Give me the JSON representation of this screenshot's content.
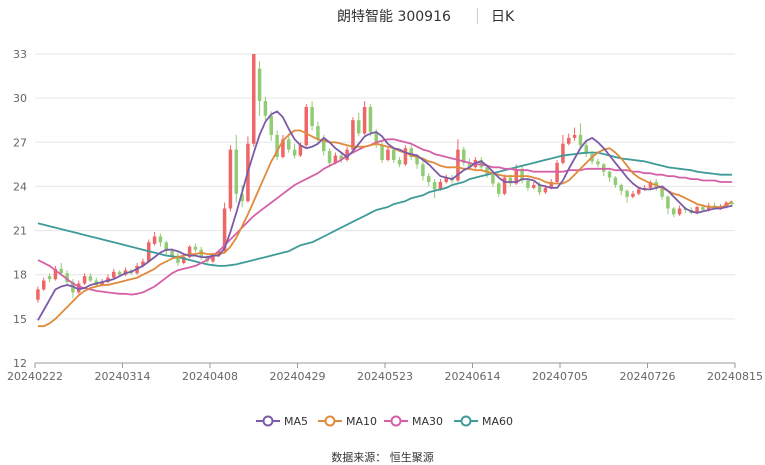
{
  "header": {
    "title": "朗特智能 300916",
    "period": "日K"
  },
  "source_text": "数据来源： 恒生聚源",
  "colors": {
    "up": "#ee6666",
    "down": "#91cc75",
    "MA5": "#7b5ba8",
    "MA10": "#e08a3c",
    "MA30": "#d660a8",
    "MA60": "#3f9a9a",
    "grid": "#e6e6e6",
    "axis_text": "#666666"
  },
  "chart_data": {
    "type": "candlestick",
    "title": "朗特智能 300916",
    "period": "日K",
    "ylim": [
      12,
      33
    ],
    "yticks": [
      12,
      15,
      18,
      21,
      24,
      27,
      30,
      33
    ],
    "xtick_labels": [
      "20240222",
      "20240314",
      "20240408",
      "20240429",
      "20240523",
      "20240614",
      "20240705",
      "20240726",
      "20240815"
    ],
    "legend": [
      "MA5",
      "MA10",
      "MA30",
      "MA60"
    ],
    "legend_position": "bottom",
    "grid": true,
    "num_days": 120,
    "candles": [
      [
        16.3,
        17.0,
        16.1,
        17.2
      ],
      [
        17.0,
        17.6,
        16.9,
        17.8
      ],
      [
        17.9,
        17.7,
        17.5,
        18.1
      ],
      [
        17.7,
        18.4,
        17.6,
        18.6
      ],
      [
        18.4,
        18.1,
        17.9,
        18.8
      ],
      [
        18.1,
        17.5,
        17.3,
        18.3
      ],
      [
        17.5,
        16.8,
        16.4,
        17.7
      ],
      [
        16.8,
        17.4,
        16.7,
        17.6
      ],
      [
        17.4,
        17.9,
        17.3,
        18.1
      ],
      [
        17.9,
        17.6,
        17.5,
        18.1
      ],
      [
        17.6,
        17.3,
        17.2,
        17.8
      ],
      [
        17.3,
        17.5,
        17.2,
        17.7
      ],
      [
        17.5,
        17.8,
        17.4,
        18.0
      ],
      [
        17.8,
        18.2,
        17.7,
        18.4
      ],
      [
        18.2,
        18.0,
        17.9,
        18.3
      ],
      [
        18.0,
        18.3,
        17.9,
        18.5
      ],
      [
        18.3,
        18.1,
        18.0,
        18.4
      ],
      [
        18.1,
        18.6,
        18.0,
        18.8
      ],
      [
        18.6,
        18.9,
        18.5,
        19.1
      ],
      [
        18.9,
        20.2,
        18.8,
        20.4
      ],
      [
        20.1,
        20.6,
        20.0,
        20.9
      ],
      [
        20.6,
        20.2,
        19.9,
        20.8
      ],
      [
        20.2,
        19.6,
        19.3,
        20.3
      ],
      [
        19.6,
        19.3,
        19.1,
        19.8
      ],
      [
        19.3,
        18.8,
        18.6,
        19.5
      ],
      [
        18.8,
        19.2,
        18.7,
        19.3
      ],
      [
        19.2,
        19.9,
        19.1,
        20.0
      ],
      [
        19.9,
        19.7,
        19.5,
        20.1
      ],
      [
        19.7,
        19.2,
        19.0,
        19.9
      ],
      [
        19.2,
        18.9,
        18.7,
        19.3
      ],
      [
        18.9,
        19.3,
        18.8,
        19.5
      ],
      [
        19.3,
        19.6,
        19.2,
        19.7
      ],
      [
        19.6,
        22.5,
        19.5,
        22.9
      ],
      [
        22.5,
        26.5,
        22.3,
        26.8
      ],
      [
        26.5,
        23.5,
        22.9,
        27.5
      ],
      [
        23.5,
        23.0,
        22.6,
        24.1
      ],
      [
        23.0,
        26.9,
        22.9,
        27.4
      ],
      [
        26.9,
        33.0,
        26.7,
        33.0
      ],
      [
        32.0,
        29.8,
        28.8,
        32.5
      ],
      [
        29.8,
        28.8,
        28.5,
        30.1
      ],
      [
        28.8,
        27.5,
        27.1,
        29.1
      ],
      [
        27.5,
        26.0,
        25.8,
        27.8
      ],
      [
        26.0,
        27.2,
        25.9,
        27.5
      ],
      [
        27.2,
        26.5,
        26.3,
        27.6
      ],
      [
        26.5,
        26.1,
        25.9,
        26.9
      ],
      [
        26.1,
        26.8,
        26.0,
        27.0
      ],
      [
        26.8,
        29.4,
        26.7,
        29.6
      ],
      [
        29.4,
        28.1,
        27.8,
        29.8
      ],
      [
        28.1,
        27.2,
        26.9,
        28.4
      ],
      [
        27.2,
        26.4,
        26.1,
        27.5
      ],
      [
        26.4,
        25.6,
        25.3,
        26.6
      ],
      [
        25.6,
        26.1,
        25.5,
        26.3
      ],
      [
        26.1,
        25.8,
        25.6,
        26.3
      ],
      [
        25.8,
        26.5,
        25.7,
        26.7
      ],
      [
        26.5,
        28.5,
        26.4,
        28.7
      ],
      [
        28.5,
        27.6,
        27.4,
        29.0
      ],
      [
        27.6,
        29.4,
        27.5,
        29.8
      ],
      [
        29.4,
        27.7,
        27.4,
        29.6
      ],
      [
        27.7,
        26.8,
        26.6,
        27.9
      ],
      [
        26.8,
        25.8,
        25.6,
        27.0
      ],
      [
        25.8,
        26.5,
        25.7,
        26.7
      ],
      [
        26.5,
        25.8,
        25.6,
        26.7
      ],
      [
        25.8,
        25.5,
        25.3,
        26.0
      ],
      [
        25.5,
        26.6,
        25.4,
        26.8
      ],
      [
        26.6,
        26.0,
        25.8,
        26.8
      ],
      [
        26.0,
        25.5,
        25.2,
        26.2
      ],
      [
        25.5,
        24.7,
        24.4,
        25.7
      ],
      [
        24.7,
        24.3,
        24.0,
        24.9
      ],
      [
        24.3,
        23.8,
        23.2,
        24.5
      ],
      [
        23.8,
        24.3,
        23.7,
        24.5
      ],
      [
        24.3,
        24.6,
        24.2,
        24.8
      ],
      [
        24.6,
        24.4,
        24.2,
        24.8
      ],
      [
        24.4,
        26.5,
        24.3,
        27.2
      ],
      [
        26.5,
        25.6,
        25.4,
        26.7
      ],
      [
        25.6,
        25.3,
        25.1,
        25.9
      ],
      [
        25.3,
        25.8,
        25.2,
        26.0
      ],
      [
        25.8,
        25.3,
        25.1,
        26.0
      ],
      [
        25.3,
        24.8,
        24.6,
        25.5
      ],
      [
        24.8,
        24.2,
        24.0,
        25.0
      ],
      [
        24.2,
        23.5,
        23.3,
        24.3
      ],
      [
        23.5,
        24.6,
        23.4,
        24.8
      ],
      [
        24.6,
        24.2,
        24.0,
        24.8
      ],
      [
        24.2,
        25.2,
        24.1,
        25.5
      ],
      [
        25.2,
        24.4,
        24.2,
        25.4
      ],
      [
        24.4,
        23.9,
        23.7,
        24.6
      ],
      [
        23.9,
        24.1,
        23.8,
        24.3
      ],
      [
        24.1,
        23.6,
        23.4,
        24.3
      ],
      [
        23.6,
        23.9,
        23.5,
        24.1
      ],
      [
        23.9,
        24.3,
        23.8,
        24.5
      ],
      [
        24.3,
        25.6,
        24.2,
        25.8
      ],
      [
        25.6,
        26.9,
        25.5,
        27.5
      ],
      [
        26.9,
        27.3,
        26.8,
        27.6
      ],
      [
        27.3,
        27.5,
        27.1,
        28.0
      ],
      [
        27.5,
        26.8,
        26.5,
        28.3
      ],
      [
        26.8,
        26.2,
        26.0,
        27.0
      ],
      [
        26.2,
        25.7,
        25.5,
        26.4
      ],
      [
        25.7,
        25.5,
        25.3,
        25.9
      ],
      [
        25.5,
        25.0,
        24.7,
        25.6
      ],
      [
        25.0,
        24.6,
        24.3,
        25.1
      ],
      [
        24.6,
        24.1,
        23.9,
        24.7
      ],
      [
        24.1,
        23.7,
        23.4,
        24.2
      ],
      [
        23.7,
        23.3,
        22.9,
        23.8
      ],
      [
        23.3,
        23.5,
        23.2,
        23.7
      ],
      [
        23.5,
        23.8,
        23.4,
        24.0
      ],
      [
        23.8,
        23.9,
        23.7,
        24.1
      ],
      [
        23.9,
        24.3,
        23.8,
        24.4
      ],
      [
        24.3,
        23.9,
        23.7,
        24.5
      ],
      [
        23.9,
        23.3,
        23.1,
        24.0
      ],
      [
        23.3,
        22.5,
        22.1,
        23.4
      ],
      [
        22.5,
        22.1,
        21.9,
        22.6
      ],
      [
        22.1,
        22.5,
        22.0,
        22.7
      ],
      [
        22.5,
        22.4,
        22.2,
        22.6
      ],
      [
        22.4,
        22.2,
        22.1,
        22.6
      ],
      [
        22.2,
        22.6,
        22.1,
        22.7
      ],
      [
        22.6,
        22.4,
        22.3,
        22.8
      ],
      [
        22.4,
        22.7,
        22.3,
        22.9
      ],
      [
        22.7,
        22.5,
        22.4,
        22.9
      ],
      [
        22.5,
        22.6,
        22.4,
        22.8
      ],
      [
        22.6,
        22.9,
        22.5,
        23.0
      ],
      [
        22.9,
        22.8,
        22.6,
        23.0
      ]
    ],
    "ma_series": [
      {
        "name": "MA5",
        "start": [
          0,
          14.9
        ],
        "end": [
          119,
          22.7
        ]
      },
      {
        "name": "MA10",
        "start": [
          0,
          14.5
        ],
        "end": [
          119,
          23.0
        ]
      },
      {
        "name": "MA30",
        "start": [
          0,
          19.0
        ],
        "end": [
          119,
          24.3
        ]
      },
      {
        "name": "MA60",
        "start": [
          0,
          21.5
        ],
        "end": [
          119,
          24.8
        ]
      }
    ],
    "ma_approx": {
      "MA5": [
        14.9,
        15.6,
        16.3,
        17.0,
        17.2,
        17.3,
        17.2,
        17.0,
        17.1,
        17.3,
        17.4,
        17.5,
        17.6,
        17.7,
        17.9,
        18.1,
        18.2,
        18.4,
        18.6,
        18.9,
        19.2,
        19.5,
        19.7,
        19.7,
        19.6,
        19.4,
        19.3,
        19.3,
        19.2,
        19.2,
        19.3,
        19.3,
        19.8,
        20.9,
        22.2,
        23.6,
        25.0,
        26.3,
        27.5,
        28.4,
        28.9,
        29.1,
        28.7,
        27.9,
        27.2,
        26.8,
        26.6,
        26.7,
        26.9,
        27.3,
        27.0,
        26.6,
        26.3,
        26.0,
        26.4,
        26.9,
        27.4,
        27.6,
        27.7,
        27.4,
        26.9,
        26.6,
        26.5,
        26.3,
        26.2,
        26.1,
        25.8,
        25.5,
        25.1,
        24.7,
        24.6,
        24.5,
        24.8,
        25.1,
        25.3,
        25.6,
        25.7,
        25.4,
        25.0,
        24.6,
        24.3,
        24.3,
        24.3,
        24.5,
        24.5,
        24.4,
        24.1,
        24.0,
        23.9,
        23.9,
        24.4,
        25.2,
        25.9,
        26.6,
        27.1,
        27.3,
        27.0,
        26.6,
        26.1,
        25.6,
        25.1,
        24.6,
        24.2,
        23.9,
        23.8,
        23.8,
        23.9,
        24.0,
        23.7,
        23.3,
        22.9,
        22.5,
        22.3,
        22.2,
        22.3,
        22.4,
        22.5,
        22.5,
        22.6,
        22.7
      ]
    },
    "ma10_approx": [
      14.5,
      14.5,
      14.7,
      15.0,
      15.4,
      15.8,
      16.2,
      16.6,
      16.9,
      17.1,
      17.2,
      17.3,
      17.3,
      17.4,
      17.5,
      17.6,
      17.7,
      17.8,
      18.0,
      18.2,
      18.4,
      18.7,
      18.9,
      19.1,
      19.2,
      19.3,
      19.4,
      19.4,
      19.5,
      19.4,
      19.4,
      19.4,
      19.5,
      19.9,
      20.5,
      21.3,
      22.1,
      23.0,
      23.9,
      24.8,
      25.7,
      26.4,
      27.1,
      27.5,
      27.8,
      27.8,
      27.6,
      27.4,
      27.2,
      27.1,
      27.0,
      27.0,
      26.9,
      26.8,
      26.7,
      26.7,
      26.7,
      26.8,
      26.9,
      26.8,
      26.7,
      26.6,
      26.4,
      26.3,
      26.1,
      26.0,
      25.9,
      25.7,
      25.6,
      25.4,
      25.3,
      25.3,
      25.3,
      25.2,
      25.2,
      25.1,
      25.1,
      25.0,
      24.9,
      24.8,
      24.7,
      24.7,
      24.7,
      24.7,
      24.7,
      24.6,
      24.5,
      24.3,
      24.2,
      24.2,
      24.2,
      24.4,
      24.8,
      25.2,
      25.6,
      26.0,
      26.3,
      26.5,
      26.6,
      26.3,
      25.9,
      25.4,
      24.9,
      24.6,
      24.4,
      24.2,
      24.1,
      23.9,
      23.7,
      23.5,
      23.4,
      23.2,
      23.0,
      22.8,
      22.7,
      22.6,
      22.6,
      22.6,
      22.7,
      23.0
    ],
    "ma30_approx": [
      19.0,
      18.8,
      18.6,
      18.3,
      18.0,
      17.7,
      17.4,
      17.2,
      17.1,
      17.0,
      16.9,
      16.85,
      16.8,
      16.75,
      16.7,
      16.7,
      16.65,
      16.7,
      16.8,
      17.0,
      17.2,
      17.5,
      17.8,
      18.1,
      18.3,
      18.4,
      18.5,
      18.6,
      18.8,
      19.0,
      19.3,
      19.6,
      20.0,
      20.4,
      20.8,
      21.2,
      21.6,
      22.0,
      22.3,
      22.6,
      22.9,
      23.2,
      23.5,
      23.8,
      24.1,
      24.3,
      24.5,
      24.7,
      24.9,
      25.2,
      25.4,
      25.6,
      25.8,
      26.1,
      26.3,
      26.5,
      26.7,
      26.8,
      27.0,
      27.1,
      27.2,
      27.2,
      27.1,
      27.0,
      26.9,
      26.7,
      26.5,
      26.4,
      26.2,
      26.1,
      26.0,
      25.9,
      25.8,
      25.7,
      25.6,
      25.5,
      25.5,
      25.4,
      25.3,
      25.3,
      25.2,
      25.2,
      25.1,
      25.1,
      25.1,
      25.0,
      25.0,
      25.0,
      25.0,
      25.0,
      25.0,
      25.1,
      25.1,
      25.1,
      25.2,
      25.2,
      25.2,
      25.2,
      25.2,
      25.1,
      25.1,
      25.1,
      25.0,
      25.0,
      24.9,
      24.9,
      24.8,
      24.8,
      24.7,
      24.7,
      24.6,
      24.6,
      24.5,
      24.5,
      24.4,
      24.4,
      24.4,
      24.3,
      24.3,
      24.3
    ],
    "ma60_approx": [
      21.5,
      21.4,
      21.3,
      21.2,
      21.1,
      21.0,
      20.9,
      20.8,
      20.7,
      20.6,
      20.5,
      20.4,
      20.3,
      20.2,
      20.1,
      20.0,
      19.9,
      19.8,
      19.7,
      19.6,
      19.5,
      19.4,
      19.3,
      19.25,
      19.2,
      19.1,
      19.0,
      18.9,
      18.8,
      18.7,
      18.65,
      18.6,
      18.6,
      18.65,
      18.7,
      18.8,
      18.9,
      19.0,
      19.1,
      19.2,
      19.3,
      19.4,
      19.5,
      19.6,
      19.8,
      20.0,
      20.1,
      20.2,
      20.4,
      20.6,
      20.8,
      21.0,
      21.2,
      21.4,
      21.6,
      21.8,
      22.0,
      22.2,
      22.4,
      22.5,
      22.6,
      22.8,
      22.9,
      23.0,
      23.2,
      23.3,
      23.4,
      23.6,
      23.7,
      23.8,
      23.9,
      24.1,
      24.2,
      24.3,
      24.5,
      24.6,
      24.7,
      24.8,
      24.9,
      25.0,
      25.1,
      25.2,
      25.3,
      25.4,
      25.5,
      25.6,
      25.7,
      25.8,
      25.9,
      26.0,
      26.1,
      26.15,
      26.2,
      26.25,
      26.3,
      26.3,
      26.3,
      26.2,
      26.1,
      26.0,
      25.9,
      25.85,
      25.8,
      25.75,
      25.7,
      25.6,
      25.5,
      25.4,
      25.3,
      25.25,
      25.2,
      25.15,
      25.1,
      25.0,
      24.95,
      24.9,
      24.85,
      24.8,
      24.8,
      24.8
    ]
  }
}
